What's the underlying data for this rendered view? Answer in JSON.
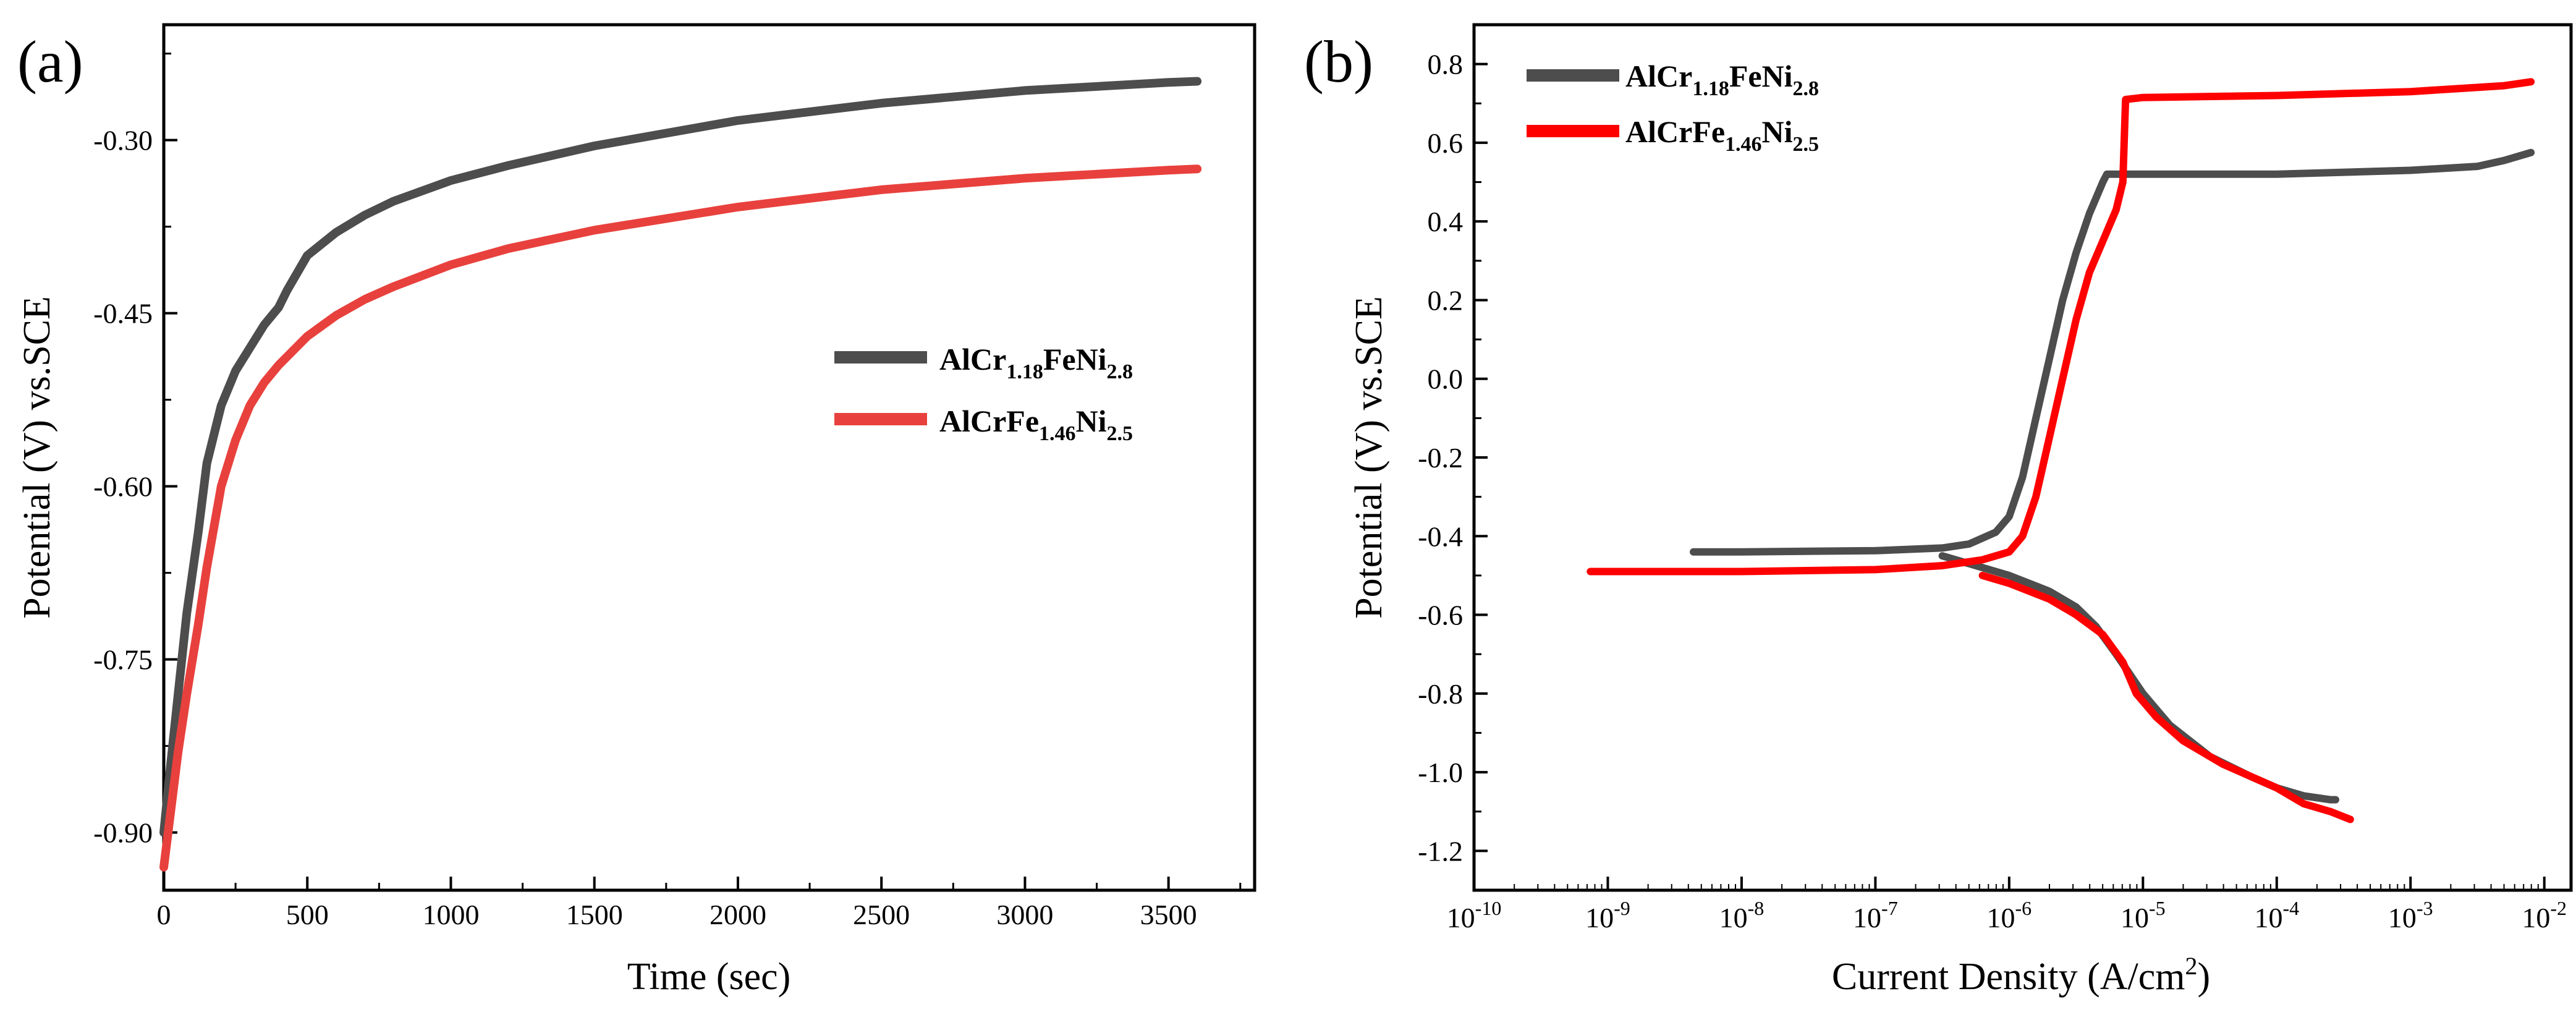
{
  "chart_data": [
    {
      "panel_label": "(a)",
      "type": "line",
      "title": "",
      "xlabel": "Time (sec)",
      "ylabel": "Potential (V) vs.SCE",
      "xlim": [
        0,
        3800
      ],
      "ylim": [
        -0.95,
        -0.2
      ],
      "xticks": [
        0,
        500,
        1000,
        1500,
        2000,
        2500,
        3000,
        3500
      ],
      "xtick_labels": [
        "0",
        "500",
        "1000",
        "1500",
        "2000",
        "2500",
        "3000",
        "3500"
      ],
      "yticks": [
        -0.9,
        -0.75,
        -0.6,
        -0.45,
        -0.3
      ],
      "ytick_labels": [
        "-0.90",
        "-0.75",
        "-0.60",
        "-0.45",
        "-0.30"
      ],
      "legend_position": "center-right",
      "series": [
        {
          "name": "AlCr1.18FeNi2.8",
          "label_parts": [
            "AlCr",
            "1.18",
            "FeNi",
            "2.8"
          ],
          "color": "#4d4d4d",
          "x": [
            0,
            20,
            50,
            80,
            120,
            150,
            200,
            250,
            300,
            350,
            400,
            430,
            500,
            600,
            700,
            800,
            1000,
            1200,
            1500,
            2000,
            2500,
            3000,
            3500,
            3600
          ],
          "y": [
            -0.9,
            -0.85,
            -0.78,
            -0.71,
            -0.64,
            -0.58,
            -0.53,
            -0.5,
            -0.48,
            -0.46,
            -0.445,
            -0.43,
            -0.4,
            -0.38,
            -0.365,
            -0.353,
            -0.335,
            -0.322,
            -0.305,
            -0.283,
            -0.268,
            -0.257,
            -0.25,
            -0.249
          ]
        },
        {
          "name": "AlCrFe1.46Ni2.5",
          "label_parts": [
            "AlCrFe",
            "1.46",
            "Ni",
            "2.5"
          ],
          "color": "#e8413d",
          "x": [
            0,
            20,
            50,
            80,
            120,
            150,
            200,
            250,
            300,
            350,
            400,
            500,
            600,
            700,
            800,
            1000,
            1200,
            1500,
            2000,
            2500,
            3000,
            3500,
            3600
          ],
          "y": [
            -0.93,
            -0.89,
            -0.83,
            -0.78,
            -0.72,
            -0.67,
            -0.6,
            -0.56,
            -0.53,
            -0.51,
            -0.495,
            -0.47,
            -0.452,
            -0.438,
            -0.427,
            -0.408,
            -0.394,
            -0.378,
            -0.358,
            -0.343,
            -0.333,
            -0.326,
            -0.325
          ]
        }
      ]
    },
    {
      "panel_label": "(b)",
      "type": "line",
      "title": "",
      "xlabel": "Current Density (A/cm",
      "xlabel_sup": "2",
      "xlabel_close": ")",
      "ylabel": "Potential (V) vs.SCE",
      "xscale": "log",
      "xlim_log10": [
        -10,
        -1.8
      ],
      "ylim": [
        -1.3,
        0.9
      ],
      "xticks_log10": [
        -10,
        -9,
        -8,
        -7,
        -6,
        -5,
        -4,
        -3,
        -2
      ],
      "xtick_exponents": [
        "-10",
        "-9",
        "-8",
        "-7",
        "-6",
        "-5",
        "-4",
        "-3",
        "-2"
      ],
      "xtick_base": "10",
      "yticks": [
        -1.2,
        -1.0,
        -0.8,
        -0.6,
        -0.4,
        -0.2,
        0.0,
        0.2,
        0.4,
        0.6,
        0.8
      ],
      "ytick_labels": [
        "-1.2",
        "-1.0",
        "-0.8",
        "-0.6",
        "-0.4",
        "-0.2",
        "0.0",
        "0.2",
        "0.4",
        "0.6",
        "0.8"
      ],
      "legend_position": "top-left",
      "series": [
        {
          "name": "AlCr1.18FeNi2.8",
          "label_parts": [
            "AlCr",
            "1.18",
            "FeNi",
            "2.8"
          ],
          "color": "#4d4d4d",
          "branches": [
            {
              "log10_i": [
                -8.36,
                -8.0,
                -7.0,
                -6.5,
                -6.3,
                -6.1,
                -6.0,
                -5.9,
                -5.8,
                -5.7,
                -5.6,
                -5.5,
                -5.4,
                -5.3,
                -5.27,
                -5.0,
                -4.0,
                -3.0,
                -2.5,
                -2.3,
                -2.1
              ],
              "E": [
                -0.44,
                -0.44,
                -0.437,
                -0.43,
                -0.42,
                -0.39,
                -0.35,
                -0.25,
                -0.1,
                0.05,
                0.2,
                0.32,
                0.42,
                0.5,
                0.52,
                0.52,
                0.52,
                0.53,
                0.54,
                0.555,
                0.575
              ]
            },
            {
              "log10_i": [
                -6.5,
                -6.3,
                -6.0,
                -5.7,
                -5.5,
                -5.35,
                -5.2,
                -5.0,
                -4.8,
                -4.5,
                -4.2,
                -4.0,
                -3.8,
                -3.6,
                -3.56
              ],
              "E": [
                -0.45,
                -0.47,
                -0.5,
                -0.54,
                -0.58,
                -0.63,
                -0.7,
                -0.8,
                -0.88,
                -0.96,
                -1.01,
                -1.04,
                -1.06,
                -1.07,
                -1.07
              ]
            }
          ]
        },
        {
          "name": "AlCrFe1.46Ni2.5",
          "label_parts": [
            "AlCrFe",
            "1.46",
            "Ni",
            "2.5"
          ],
          "color": "#ff0000",
          "branches": [
            {
              "log10_i": [
                -9.13,
                -8.0,
                -7.0,
                -6.5,
                -6.2,
                -6.0,
                -5.9,
                -5.8,
                -5.7,
                -5.6,
                -5.5,
                -5.4,
                -5.3,
                -5.2,
                -5.15,
                -5.13,
                -5.0,
                -4.0,
                -3.0,
                -2.3,
                -2.1
              ],
              "E": [
                -0.49,
                -0.49,
                -0.485,
                -0.475,
                -0.46,
                -0.44,
                -0.4,
                -0.3,
                -0.15,
                0.0,
                0.15,
                0.27,
                0.35,
                0.43,
                0.5,
                0.71,
                0.715,
                0.72,
                0.73,
                0.745,
                0.755
              ]
            },
            {
              "log10_i": [
                -6.2,
                -6.0,
                -5.7,
                -5.5,
                -5.3,
                -5.15,
                -5.05,
                -4.9,
                -4.7,
                -4.4,
                -4.0,
                -3.8,
                -3.6,
                -3.45
              ],
              "E": [
                -0.5,
                -0.52,
                -0.56,
                -0.6,
                -0.65,
                -0.72,
                -0.8,
                -0.86,
                -0.92,
                -0.98,
                -1.04,
                -1.08,
                -1.1,
                -1.12
              ]
            }
          ]
        }
      ]
    }
  ]
}
